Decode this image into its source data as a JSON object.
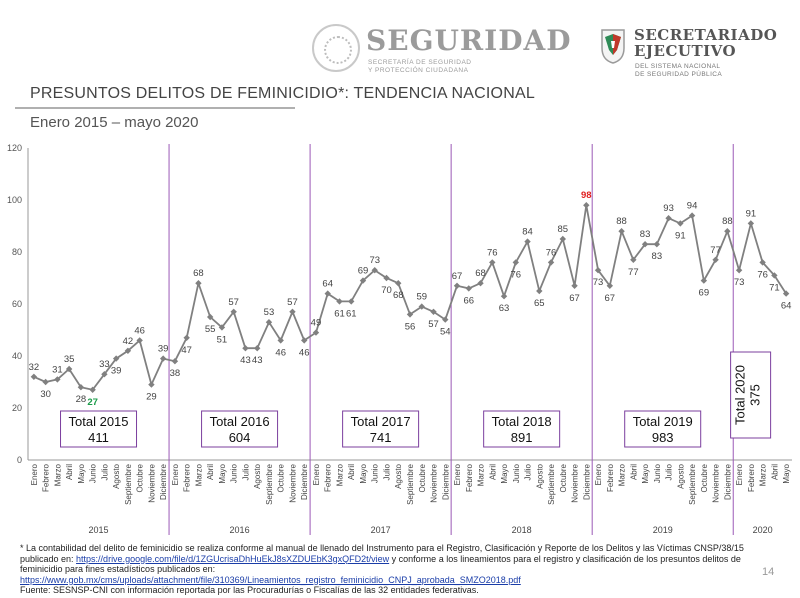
{
  "header": {
    "seguridad_word": "SEGURIDAD",
    "seguridad_sub_line1": "SECRETARÍA DE SEGURIDAD",
    "seguridad_sub_line2": "Y PROTECCIÓN CIUDADANA",
    "secretariado_line1": "SECRETARIADO",
    "secretariado_line2": "EJECUTIVO",
    "secretariado_sub_line1": "DEL SISTEMA NACIONAL",
    "secretariado_sub_line2": "DE SEGURIDAD PÚBLICA"
  },
  "title": "PRESUNTOS DELITOS DE FEMINICIDIO*: TENDENCIA NACIONAL",
  "subtitle": "Enero 2015 – mayo 2020",
  "colors": {
    "line": "#808080",
    "separator": "#9b59b6",
    "box_border": "#7b3f9e",
    "min_label": "#1a9b48",
    "max_label": "#e02020"
  },
  "chart_data": {
    "type": "line",
    "ylim": [
      0,
      120
    ],
    "yticks": [
      0,
      20,
      40,
      60,
      80,
      100,
      120
    ],
    "months": [
      "Enero",
      "Febrero",
      "Marzo",
      "Abril",
      "Mayo",
      "Junio",
      "Julio",
      "Agosto",
      "Septiembre",
      "Octubre",
      "Noviembre",
      "Diciembre"
    ],
    "years": [
      {
        "year": "2015",
        "values": [
          32,
          30,
          31,
          35,
          28,
          27,
          33,
          39,
          42,
          46,
          29,
          39
        ],
        "total_label": "Total 2015",
        "total_value": "411"
      },
      {
        "year": "2016",
        "values": [
          38,
          47,
          68,
          55,
          51,
          57,
          43,
          43,
          53,
          46,
          57,
          46
        ],
        "total_label": "Total 2016",
        "total_value": "604"
      },
      {
        "year": "2017",
        "values": [
          49,
          64,
          61,
          61,
          69,
          73,
          70,
          68,
          56,
          59,
          57,
          54
        ],
        "total_label": "Total 2017",
        "total_value": "741"
      },
      {
        "year": "2018",
        "values": [
          67,
          66,
          68,
          76,
          63,
          76,
          84,
          65,
          76,
          85,
          67,
          98
        ],
        "total_label": "Total 2018",
        "total_value": "891"
      },
      {
        "year": "2019",
        "values": [
          73,
          67,
          88,
          77,
          83,
          83,
          93,
          91,
          94,
          69,
          77,
          88
        ],
        "total_label": "Total 2019",
        "total_value": "983"
      },
      {
        "year": "2020",
        "values": [
          73,
          91,
          76,
          71,
          64
        ],
        "total_label": "Total 2020",
        "total_value": "375"
      }
    ],
    "min_point": {
      "year": "2015",
      "month": "Junio",
      "value": 27
    },
    "max_point": {
      "year": "2018",
      "month": "Diciembre",
      "value": 98
    }
  },
  "footer": {
    "note_part1": "* La contabilidad del delito de feminicidio se realiza conforme al manual de llenado del Instrumento para el Registro, Clasificación y Reporte de los Delitos y las Víctimas CNSP/38/15 publicado en: ",
    "link1": "https://drive.google.com/file/d/1ZGUcrisaDhHuEkJ8sXZDUEbK3gxQFD2t/view",
    "note_part2": " y conforme a los lineamientos para el registro y clasificación de los presuntos delitos de feminicidio para fines estadísticos publicados en:",
    "link2": "https://www.gob.mx/cms/uploads/attachment/file/310369/Lineamientos_registro_feminicidio_CNPJ_aprobada_SMZO2018.pdf",
    "source": "Fuente: SESNSP-CNI con información reportada por las Procuradurías o Fiscalías de las 32 entidades federativas."
  },
  "page_number": "14"
}
